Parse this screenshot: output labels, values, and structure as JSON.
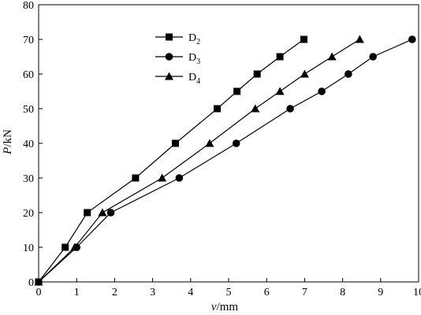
{
  "chart_data": {
    "type": "line",
    "xlabel_var": "v",
    "xlabel_unit": "/mm",
    "ylabel_var": "P",
    "ylabel_unit": "/kN",
    "xlim": [
      0,
      10
    ],
    "ylim": [
      0,
      80
    ],
    "xticks": [
      0,
      1,
      2,
      3,
      4,
      5,
      6,
      7,
      8,
      9,
      10
    ],
    "yticks": [
      0,
      10,
      20,
      30,
      40,
      50,
      60,
      70,
      80
    ],
    "grid": false,
    "legend_position": "top-left",
    "colors": {
      "line": "#000000",
      "marker": "#000000"
    },
    "series": [
      {
        "name_base": "D",
        "name_sub": "2",
        "marker": "square",
        "x": [
          0,
          0.7,
          1.28,
          2.55,
          3.6,
          4.7,
          5.22,
          5.75,
          6.35,
          6.98
        ],
        "y": [
          0,
          10,
          20,
          30,
          40,
          50,
          55,
          60,
          65,
          70
        ]
      },
      {
        "name_base": "D",
        "name_sub": "3",
        "marker": "circle",
        "x": [
          0,
          1.0,
          1.9,
          3.7,
          5.2,
          6.62,
          7.45,
          8.15,
          8.8,
          9.83
        ],
        "y": [
          0,
          10,
          20,
          30,
          40,
          50,
          55,
          60,
          65,
          70
        ]
      },
      {
        "name_base": "D",
        "name_sub": "4",
        "marker": "triangle",
        "x": [
          0,
          0.95,
          1.68,
          3.25,
          4.5,
          5.7,
          6.35,
          7.0,
          7.72,
          8.45
        ],
        "y": [
          0,
          10,
          20,
          30,
          40,
          50,
          55,
          60,
          65,
          70
        ]
      }
    ]
  }
}
